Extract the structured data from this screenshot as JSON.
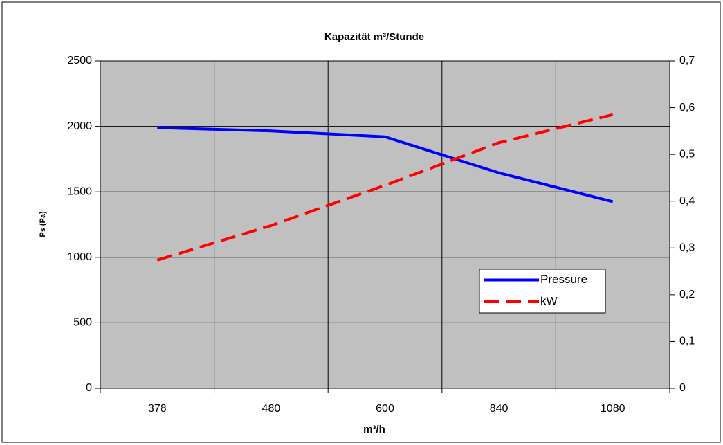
{
  "chart_data": {
    "type": "line",
    "title": "Kapazität m³/Stunde",
    "x_label": "m³/h",
    "y_label": "Ps (Pa)",
    "categories": [
      "378",
      "480",
      "600",
      "840",
      "1080"
    ],
    "series": [
      {
        "name": "Pressure",
        "color": "#0000ff",
        "dash": false,
        "values": [
          1990,
          1965,
          1920,
          1645,
          1425
        ]
      },
      {
        "name": "kW",
        "color": "#ff0000",
        "dash": true,
        "axis": "y2",
        "values": [
          0.274,
          0.348,
          0.434,
          0.525,
          0.585
        ]
      }
    ],
    "ylim": [
      0,
      2500
    ],
    "yticks": [
      0,
      500,
      1000,
      1500,
      2000,
      2500
    ],
    "y2lim": [
      0,
      0.7
    ],
    "y2ticks": [
      0,
      {
        "value": 0.1,
        "label": "0,1"
      },
      {
        "value": 0.2,
        "label": "0,2"
      },
      {
        "value": 0.3,
        "label": "0,3"
      },
      {
        "value": 0.4,
        "label": "0,4"
      },
      {
        "value": 0.5,
        "label": "0,5"
      },
      {
        "value": 0.6,
        "label": "0,6"
      },
      {
        "value": 0.7,
        "label": "0,7"
      }
    ],
    "grid": true,
    "legend": "lower right"
  }
}
